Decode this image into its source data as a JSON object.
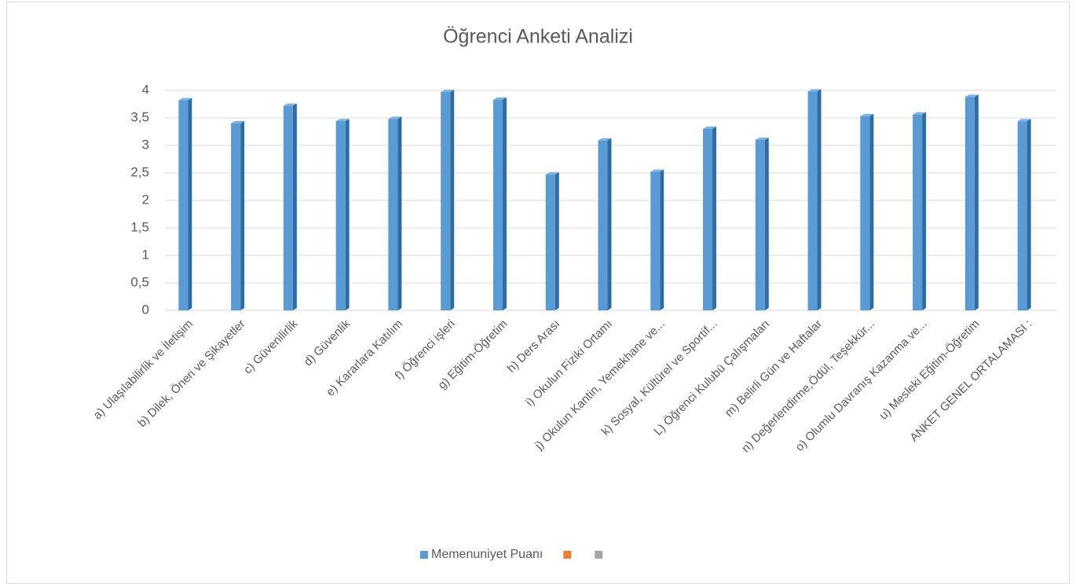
{
  "chart_data": {
    "type": "bar",
    "title": "Öğrenci Anketi Analizi",
    "categories": [
      "a) Ulaşılabilirlik ve İletişim",
      "b) Dilek, Öneri ve Şikayetler",
      "c) Güvenilirlik",
      "d) Güvenlik",
      "e) Kararlara Katılım",
      "f) Öğrenci işleri",
      "g) Eğitim-Öğretim",
      "h) Ders Arası",
      "i) Okulun Fiziki Ortamı",
      "j) Okulun  Kantin, Yemekhane ve...",
      "k) Sosyal, Kültürel ve Sportif...",
      "L) Öğrenci Kulubü Çalışmaları",
      "m) Belirli Gün ve Haftalar",
      "n) Değerlendirme,Ödül, Teşekkür...",
      "o) Olumlu Davranış Kazanma ve...",
      "u) Mesleki Eğitim-Öğretim",
      "ANKET GENEL ORTALAMASI :"
    ],
    "series": [
      {
        "name": "Memenuniyet Puanı",
        "color": "#5b9bd5",
        "values": [
          3.82,
          3.4,
          3.72,
          3.44,
          3.48,
          3.97,
          3.83,
          2.47,
          3.09,
          2.52,
          3.3,
          3.1,
          3.98,
          3.53,
          3.56,
          3.88,
          3.44
        ]
      },
      {
        "color": "#ed7d31",
        "values": [
          null,
          null,
          null,
          null,
          null,
          null,
          null,
          null,
          null,
          null,
          null,
          null,
          null,
          null,
          null,
          null,
          null
        ]
      },
      {
        "color": "#a5a5a5",
        "values": [
          null,
          null,
          null,
          null,
          null,
          null,
          null,
          null,
          null,
          null,
          null,
          null,
          null,
          null,
          null,
          null,
          null
        ]
      }
    ],
    "ylim": [
      0,
      4
    ],
    "yticks": [
      0,
      {
        "value": 0.5,
        "label": "0,5"
      },
      1,
      {
        "value": 1.5,
        "label": "1,5"
      },
      2,
      {
        "value": 2.5,
        "label": "2,5"
      },
      3,
      {
        "value": 3.5,
        "label": "3,5"
      },
      4
    ],
    "grid": true,
    "legend": "bottom"
  }
}
